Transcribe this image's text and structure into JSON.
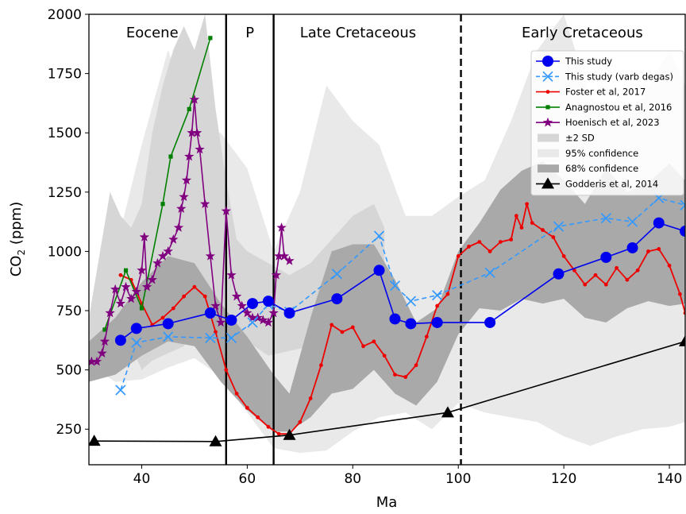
{
  "chart_data": {
    "type": "line",
    "title": "",
    "xlabel": "Ma",
    "ylabel_main": "CO",
    "ylabel_sub": "2",
    "ylabel_unit": " (ppm)",
    "xlim": [
      30,
      143
    ],
    "ylim": [
      100,
      2000
    ],
    "xticks": [
      40,
      60,
      80,
      100,
      120,
      140
    ],
    "yticks": [
      250,
      500,
      750,
      1000,
      1250,
      1500,
      1750,
      2000
    ],
    "grid": false,
    "legend_position": "top-right",
    "boundaries": [
      {
        "x": 56,
        "style": "solid"
      },
      {
        "x": 65,
        "style": "solid"
      },
      {
        "x": 100.5,
        "style": "dashed"
      }
    ],
    "eras": [
      {
        "label": "Eocene",
        "x": 42
      },
      {
        "label": "P",
        "x": 60.5
      },
      {
        "label": "Late Cretaceous",
        "x": 81
      },
      {
        "label": "Early Cretaceous",
        "x": 123.5
      }
    ],
    "bands": [
      {
        "name": "95% confidence",
        "color": "#e9e9e9",
        "x": [
          30,
          35,
          40,
          45,
          50,
          55,
          60,
          65,
          70,
          75,
          80,
          85,
          90,
          95,
          100,
          105,
          110,
          115,
          120,
          125,
          130,
          135,
          140,
          143
        ],
        "lower": [
          520,
          450,
          460,
          510,
          550,
          470,
          320,
          170,
          150,
          160,
          240,
          300,
          320,
          250,
          360,
          320,
          300,
          280,
          220,
          180,
          220,
          250,
          260,
          280
        ],
        "upper": [
          720,
          1000,
          1450,
          1850,
          1500,
          1500,
          1350,
          1000,
          1250,
          1700,
          1550,
          1450,
          1150,
          1150,
          1230,
          1300,
          1550,
          1850,
          2000,
          1650,
          1550,
          1650,
          1850,
          1700
        ]
      },
      {
        "name": "±2 SD",
        "color": "#d6d6d6",
        "x": [
          30,
          34,
          36,
          38,
          40,
          42,
          44,
          46,
          48,
          50,
          52,
          54,
          56,
          58,
          60,
          64,
          68,
          72,
          76,
          80,
          84,
          86
        ],
        "lower": [
          520,
          510,
          540,
          600,
          500,
          540,
          560,
          580,
          600,
          700,
          680,
          620,
          560,
          580,
          620,
          560,
          580,
          600,
          620,
          650,
          680,
          700
        ],
        "upper": [
          720,
          1250,
          1150,
          1100,
          1200,
          1500,
          1700,
          1850,
          1950,
          1850,
          2000,
          1600,
          1300,
          1050,
          1000,
          950,
          900,
          950,
          1050,
          1150,
          1200,
          1100
        ]
      },
      {
        "name": "68% confidence",
        "color": "#a9a9a9",
        "x": [
          30,
          35,
          40,
          45,
          50,
          55,
          60,
          65,
          68,
          72,
          76,
          80,
          84,
          88,
          92,
          96,
          100,
          104,
          108,
          112,
          116,
          120,
          124,
          128,
          132,
          136,
          140,
          143
        ],
        "lower": [
          450,
          480,
          560,
          620,
          600,
          450,
          330,
          240,
          240,
          300,
          400,
          420,
          500,
          400,
          350,
          450,
          650,
          760,
          750,
          800,
          780,
          800,
          720,
          700,
          760,
          790,
          770,
          780
        ],
        "upper": [
          620,
          720,
          870,
          980,
          950,
          780,
          640,
          480,
          400,
          720,
          1000,
          1030,
          1030,
          880,
          700,
          760,
          1000,
          1120,
          1260,
          1340,
          1380,
          1300,
          1200,
          1350,
          1250,
          1290,
          1370,
          1300
        ]
      }
    ],
    "series": [
      {
        "name": "This study",
        "color": "#0000ee",
        "style": "solid",
        "marker": "circle",
        "x": [
          36,
          39,
          45,
          53,
          57,
          61,
          64,
          68,
          77,
          85,
          88,
          91,
          96,
          106,
          119,
          128,
          133,
          138,
          143
        ],
        "y": [
          625,
          675,
          695,
          740,
          710,
          780,
          790,
          740,
          800,
          920,
          715,
          695,
          700,
          700,
          905,
          975,
          1015,
          1120,
          1085
        ]
      },
      {
        "name": "This study (varb degas)",
        "color": "#3399ff",
        "style": "dashed",
        "marker": "x",
        "x": [
          36,
          39,
          45,
          53,
          57,
          61,
          64,
          68,
          77,
          85,
          88,
          91,
          96,
          106,
          119,
          128,
          133,
          138,
          143
        ],
        "y": [
          415,
          615,
          640,
          635,
          635,
          700,
          775,
          745,
          905,
          1065,
          855,
          790,
          815,
          910,
          1105,
          1140,
          1125,
          1225,
          1195
        ]
      },
      {
        "name": "Foster et al, 2017",
        "color": "#ee0000",
        "style": "solid",
        "marker": "dot",
        "x": [
          36,
          38,
          40,
          42,
          44,
          46,
          48,
          50,
          52,
          54,
          56,
          58,
          60,
          62,
          64,
          66,
          68,
          70,
          72,
          74,
          76,
          78,
          80,
          82,
          84,
          86,
          88,
          90,
          92,
          94,
          96,
          98,
          100,
          102,
          104,
          106,
          108,
          110,
          111,
          112,
          113,
          114,
          116,
          118,
          120,
          122,
          124,
          126,
          128,
          130,
          132,
          134,
          136,
          138,
          140,
          142,
          143
        ],
        "y": [
          900,
          880,
          780,
          690,
          720,
          760,
          810,
          850,
          810,
          660,
          500,
          400,
          340,
          300,
          260,
          230,
          230,
          280,
          380,
          520,
          690,
          660,
          680,
          600,
          620,
          560,
          480,
          470,
          520,
          640,
          770,
          820,
          980,
          1020,
          1040,
          1000,
          1040,
          1050,
          1150,
          1100,
          1200,
          1120,
          1090,
          1060,
          980,
          920,
          860,
          900,
          860,
          930,
          880,
          920,
          1000,
          1010,
          940,
          820,
          740
        ]
      },
      {
        "name": "Anagnostou et al, 2016",
        "color": "#008000",
        "style": "solid",
        "marker": "square",
        "x": [
          33,
          37,
          40,
          44,
          45.5,
          49,
          53
        ],
        "y": [
          670,
          920,
          760,
          1200,
          1400,
          1600,
          1900
        ]
      },
      {
        "name": "Hoenisch et al, 2023",
        "color": "#800080",
        "style": "solid",
        "marker": "star",
        "x": [
          30.5,
          31.5,
          32.5,
          33,
          34,
          35,
          36,
          37,
          38,
          39,
          40,
          40.5,
          41,
          42,
          43,
          44,
          45,
          46,
          47,
          47.5,
          48,
          48.5,
          49,
          49.5,
          50,
          50.5,
          51,
          52,
          53,
          54,
          55,
          56,
          57,
          58,
          59,
          60,
          61,
          62,
          63,
          64,
          65,
          65.5,
          66,
          66.5,
          67,
          68
        ],
        "y": [
          535,
          535,
          570,
          620,
          740,
          840,
          780,
          850,
          800,
          830,
          920,
          1060,
          850,
          880,
          950,
          980,
          1000,
          1050,
          1100,
          1180,
          1230,
          1300,
          1400,
          1500,
          1640,
          1500,
          1430,
          1200,
          980,
          770,
          700,
          1170,
          900,
          810,
          770,
          740,
          720,
          720,
          710,
          700,
          740,
          900,
          980,
          1100,
          980,
          960
        ]
      },
      {
        "name": "Godderis et al, 2014",
        "color": "#000000",
        "style": "solid",
        "marker": "triangle",
        "x": [
          31,
          54,
          68,
          98,
          143
        ],
        "y": [
          200,
          198,
          225,
          320,
          620
        ]
      }
    ],
    "legend": [
      {
        "label": "This study",
        "kind": "line",
        "color": "#0000ee",
        "marker": "circle",
        "style": "solid"
      },
      {
        "label": "This study (varb degas)",
        "kind": "line",
        "color": "#3399ff",
        "marker": "x",
        "style": "dashed"
      },
      {
        "label": "Foster et al, 2017",
        "kind": "line",
        "color": "#ee0000",
        "marker": "dot",
        "style": "solid"
      },
      {
        "label": "Anagnostou et al, 2016",
        "kind": "line",
        "color": "#008000",
        "marker": "square",
        "style": "solid"
      },
      {
        "label": "Hoenisch et al, 2023",
        "kind": "line",
        "color": "#800080",
        "marker": "star",
        "style": "solid"
      },
      {
        "label": "±2 SD",
        "kind": "patch",
        "color": "#d6d6d6"
      },
      {
        "label": "95% confidence",
        "kind": "patch",
        "color": "#e9e9e9"
      },
      {
        "label": "68% confidence",
        "kind": "patch",
        "color": "#a9a9a9"
      },
      {
        "label": "Godderis et al, 2014",
        "kind": "line",
        "color": "#000000",
        "marker": "triangle",
        "style": "solid"
      }
    ]
  }
}
